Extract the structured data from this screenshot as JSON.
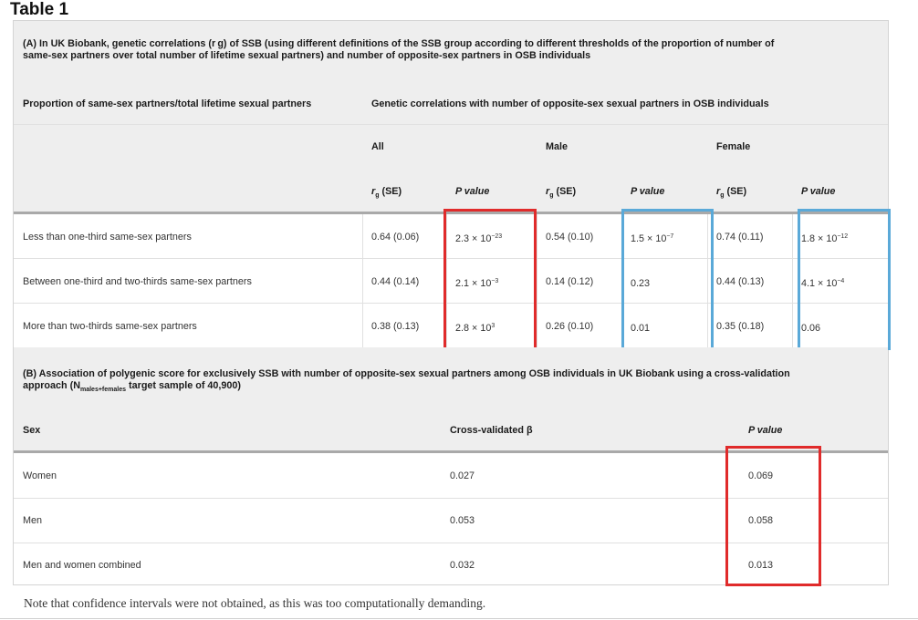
{
  "document": {
    "title": "Table 1",
    "note": "Note that confidence intervals were not obtained, as this was too computationally demanding."
  },
  "section_a": {
    "heading_line1": "(A) In UK Biobank, genetic correlations (r g) of SSB (using different definitions of the SSB group according to different thresholds of the proportion of number of",
    "heading_line2": "same-sex partners over total number of lifetime sexual partners) and number of opposite-sex partners in OSB individuals",
    "col_left_header": "Proportion of same-sex partners/total lifetime sexual partners",
    "col_right_header": "Genetic correlations with number of opposite-sex sexual partners in OSB individuals",
    "groups": [
      "All",
      "Male",
      "Female"
    ],
    "rg_label": "r",
    "rg_sub": "g",
    "rg_suffix": " (SE)",
    "p_label": "P value",
    "rows": [
      {
        "label": "Less than one-third same-sex partners",
        "all_rg": "0.64 (0.06)",
        "all_p_base": "2.3 × 10",
        "all_p_exp": "−23",
        "male_rg": "0.54 (0.10)",
        "male_p_base": "1.5 × 10",
        "male_p_exp": "−7",
        "female_rg": "0.74 (0.11)",
        "female_p_base": "1.8 × 10",
        "female_p_exp": "−12"
      },
      {
        "label": "Between one-third and two-thirds same-sex partners",
        "all_rg": "0.44 (0.14)",
        "all_p_base": "2.1 × 10",
        "all_p_exp": "−3",
        "male_rg": "0.14 (0.12)",
        "male_p_base": "0.23",
        "male_p_exp": "",
        "female_rg": "0.44 (0.13)",
        "female_p_base": "4.1 × 10",
        "female_p_exp": "−4"
      },
      {
        "label": "More than two-thirds same-sex partners",
        "all_rg": "0.38 (0.13)",
        "all_p_base": "2.8 × 10",
        "all_p_exp": "3",
        "male_rg": "0.26 (0.10)",
        "male_p_base": "0.01",
        "male_p_exp": "",
        "female_rg": "0.35 (0.18)",
        "female_p_base": "0.06",
        "female_p_exp": ""
      }
    ]
  },
  "section_b": {
    "heading_line1": "(B) Association of polygenic score for exclusively SSB with number of opposite-sex sexual partners among OSB individuals in UK Biobank using a cross-validation",
    "heading_line2_pre": "approach (N",
    "heading_line2_sub": "males+females",
    "heading_line2_post": " target sample of 40,900)",
    "col_sex": "Sex",
    "col_beta": "Cross-validated β",
    "col_p": "P value",
    "rows": [
      {
        "sex": "Women",
        "beta": "0.027",
        "p": "0.069"
      },
      {
        "sex": "Men",
        "beta": "0.053",
        "p": "0.058"
      },
      {
        "sex": "Men and women combined",
        "beta": "0.032",
        "p": "0.013"
      }
    ]
  },
  "highlight_colors": {
    "red": "#e02b2b",
    "blue": "#5aa9d8"
  }
}
